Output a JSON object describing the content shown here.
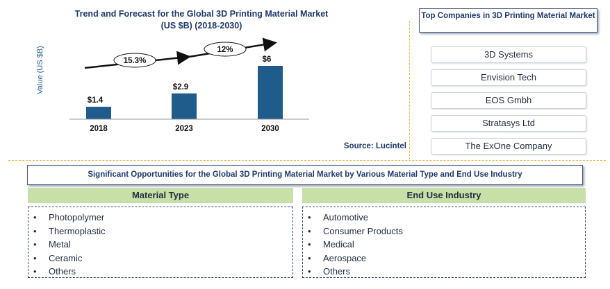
{
  "chart_data": {
    "type": "bar",
    "title": "Trend and Forecast for the Global 3D Printing Material Market (US $B) (2018-2030)",
    "title_lines": [
      "Trend and Forecast for the Global 3D Printing Material Market",
      "(US $B) (2018-2030)"
    ],
    "ylabel": "Value (US $B)",
    "xlabel": "",
    "categories": [
      "2018",
      "2023",
      "2030"
    ],
    "values": [
      1.4,
      2.9,
      6
    ],
    "value_labels": [
      "$1.4",
      "$2.9",
      "$6"
    ],
    "ylim": [
      0,
      6
    ],
    "grid": false,
    "bar_color": "#1f5c8c",
    "growth_annotations": [
      {
        "label": "15.3%",
        "from": "2018",
        "to": "2023"
      },
      {
        "label": "12%",
        "from": "2023",
        "to": "2030"
      }
    ],
    "source": "Source: Lucintel"
  },
  "companies": {
    "title": "Top Companies in 3D Printing Material Market",
    "items": [
      "3D Systems",
      "Envision Tech",
      "EOS Gmbh",
      "Stratasys Ltd",
      "The ExOne Company"
    ]
  },
  "opportunities": {
    "title": "Significant Opportunities for the Global 3D Printing Material Market by Various Material Type and End Use Industry",
    "material_type": {
      "heading": "Material Type",
      "items": [
        "Photopolymer",
        "Thermoplastic",
        "Metal",
        "Ceramic",
        "Others"
      ]
    },
    "end_use": {
      "heading": "End Use Industry",
      "items": [
        "Automotive",
        "Consumer Products",
        "Medical",
        "Aerospace",
        "Others"
      ]
    }
  },
  "colors": {
    "accent_green": "#c6e0a8",
    "divider_gold": "#e8b64a",
    "title_navy": "#1f3a6b"
  }
}
